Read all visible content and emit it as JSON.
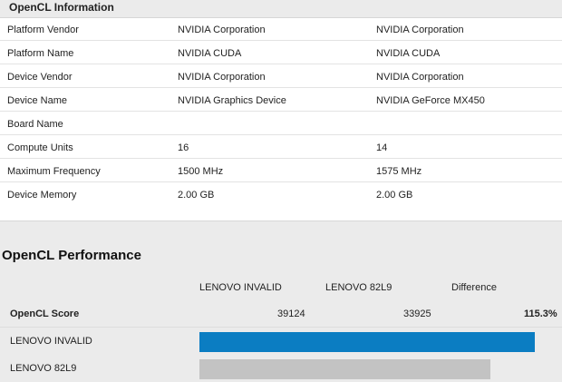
{
  "opencl_info": {
    "title": "OpenCL Information",
    "rows": [
      {
        "label": "Platform Vendor",
        "a": "NVIDIA Corporation",
        "b": "NVIDIA Corporation"
      },
      {
        "label": "Platform Name",
        "a": "NVIDIA CUDA",
        "b": "NVIDIA CUDA"
      },
      {
        "label": "Device Vendor",
        "a": "NVIDIA Corporation",
        "b": "NVIDIA Corporation"
      },
      {
        "label": "Device Name",
        "a": "NVIDIA Graphics Device",
        "b": "NVIDIA GeForce MX450"
      },
      {
        "label": "Board Name",
        "a": "",
        "b": ""
      },
      {
        "label": "Compute Units",
        "a": "16",
        "b": "14"
      },
      {
        "label": "Maximum Frequency",
        "a": "1500 MHz",
        "b": "1575 MHz"
      },
      {
        "label": "Device Memory",
        "a": "2.00 GB",
        "b": "2.00 GB"
      }
    ]
  },
  "opencl_performance": {
    "title": "OpenCL Performance",
    "columns": [
      "LENOVO INVALID",
      "LENOVO 82L9",
      "Difference"
    ],
    "score_label": "OpenCL Score",
    "score_a": "39124",
    "score_b": "33925",
    "difference": "115.3%",
    "bars": [
      {
        "label": "LENOVO INVALID",
        "value": 39124,
        "color": "#0b7dc2"
      },
      {
        "label": "LENOVO 82L9",
        "value": 33925,
        "color": "#c3c3c3"
      }
    ]
  }
}
